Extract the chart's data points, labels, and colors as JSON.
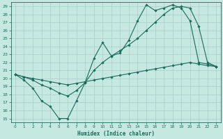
{
  "xlabel": "Humidex (Indice chaleur)",
  "bg_color": "#c5e8e0",
  "line_color": "#1a6b5a",
  "grid_color": "#a8cfc8",
  "xlim": [
    -0.5,
    23.5
  ],
  "ylim": [
    14.5,
    29.5
  ],
  "xticks": [
    0,
    1,
    2,
    3,
    4,
    5,
    6,
    7,
    8,
    9,
    10,
    11,
    12,
    13,
    14,
    15,
    16,
    17,
    18,
    19,
    20,
    21,
    22,
    23
  ],
  "yticks": [
    15,
    16,
    17,
    18,
    19,
    20,
    21,
    22,
    23,
    24,
    25,
    26,
    27,
    28,
    29
  ],
  "line1_x": [
    0,
    1,
    2,
    3,
    4,
    5,
    6,
    7,
    8,
    9,
    10,
    11,
    12,
    13,
    14,
    15,
    16,
    17,
    18,
    19,
    20,
    21,
    22,
    23
  ],
  "line1_y": [
    20.5,
    19.8,
    18.8,
    17.2,
    16.5,
    15.0,
    15.0,
    17.2,
    19.5,
    22.5,
    24.5,
    22.8,
    23.2,
    24.8,
    27.2,
    29.2,
    28.5,
    28.8,
    29.2,
    28.8,
    27.2,
    22.0,
    21.8,
    21.5
  ],
  "line2_x": [
    0,
    1,
    2,
    3,
    4,
    5,
    6,
    7,
    8,
    9,
    10,
    11,
    12,
    13,
    14,
    15,
    16,
    17,
    18,
    19,
    20,
    21,
    22,
    23
  ],
  "line2_y": [
    20.5,
    20.2,
    19.8,
    19.2,
    18.8,
    18.2,
    17.8,
    18.5,
    19.5,
    21.0,
    22.0,
    22.8,
    23.5,
    24.2,
    25.0,
    26.0,
    27.0,
    28.0,
    28.8,
    29.0,
    28.8,
    26.5,
    22.0,
    21.5
  ],
  "line3_x": [
    0,
    1,
    2,
    3,
    4,
    5,
    6,
    7,
    8,
    9,
    10,
    11,
    12,
    13,
    14,
    15,
    16,
    17,
    18,
    19,
    20,
    21,
    22,
    23
  ],
  "line3_y": [
    20.5,
    20.2,
    20.0,
    19.8,
    19.6,
    19.4,
    19.2,
    19.4,
    19.6,
    19.8,
    20.0,
    20.2,
    20.4,
    20.6,
    20.8,
    21.0,
    21.2,
    21.4,
    21.6,
    21.8,
    22.0,
    21.8,
    21.6,
    21.5
  ]
}
